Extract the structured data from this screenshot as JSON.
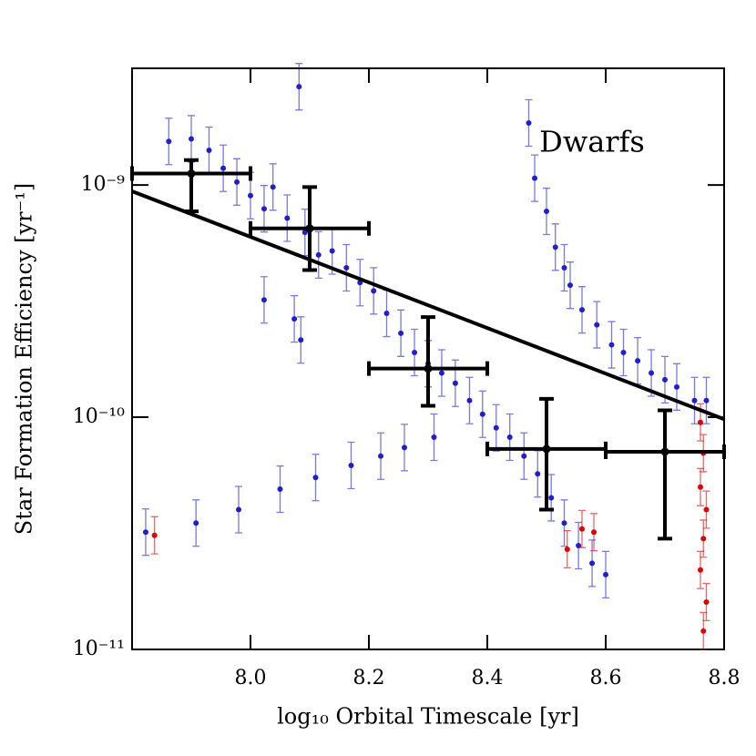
{
  "chart_data": {
    "type": "scatter",
    "y_scale": "log",
    "annotation": "Dwarfs",
    "x_label": "log₁₀ Orbital Timescale [yr]",
    "y_label": "Star Formation Efficiency [yr⁻¹]",
    "xlim": [
      7.8,
      8.8
    ],
    "ylim": [
      1e-11,
      3.18e-09
    ],
    "xticks": [
      {
        "value": 8,
        "label": "8.0"
      },
      8.2,
      8.4,
      8.6,
      8.8
    ],
    "yticks": [
      {
        "value": 1e-11,
        "label": "10⁻¹¹"
      },
      {
        "value": 1e-10,
        "label": "10⁻¹⁰"
      },
      {
        "value": 1e-09,
        "label": "10⁻⁹"
      }
    ],
    "series": [
      {
        "color": "#1f1fd0",
        "y_err_dex": 0.1,
        "x": [
          7.823,
          7.908,
          7.98,
          8.05,
          8.11,
          8.17,
          8.22,
          8.26,
          8.31,
          8.47,
          8.48,
          8.5,
          8.515,
          8.53,
          8.54,
          8.56,
          8.585,
          8.61,
          8.63,
          8.654,
          8.677,
          8.7,
          8.72,
          8.75,
          8.77,
          7.862,
          7.9,
          7.93,
          7.954,
          7.977,
          8.0,
          8.023,
          8.038,
          8.062,
          8.082,
          8.092,
          8.115,
          8.138,
          8.162,
          8.185,
          8.208,
          8.23,
          8.254,
          8.277,
          8.3,
          8.323,
          8.346,
          8.37,
          8.392,
          8.415,
          8.438,
          8.462,
          8.485,
          8.508,
          8.53,
          8.554,
          8.577,
          8.6,
          8.023,
          8.074,
          8.085
        ],
        "values": [
          3.2e-11,
          3.5e-11,
          4e-11,
          4.9e-11,
          5.5e-11,
          6.2e-11,
          6.8e-11,
          7.4e-11,
          8.2e-11,
          1.85e-09,
          1.07e-09,
          7.7e-10,
          5.4e-10,
          4.4e-10,
          3.7e-10,
          2.9e-10,
          2.5e-10,
          2.05e-10,
          1.9e-10,
          1.75e-10,
          1.55e-10,
          1.45e-10,
          1.35e-10,
          1.18e-10,
          1.18e-10,
          1.54e-09,
          1.58e-09,
          1.41e-09,
          1.18e-09,
          1.03e-09,
          9e-10,
          7.9e-10,
          9.8e-10,
          7.2e-10,
          2.65e-09,
          6.25e-10,
          5e-10,
          5.2e-10,
          4.4e-10,
          3.8e-10,
          3.5e-10,
          2.8e-10,
          2.3e-10,
          1.9e-10,
          1.7e-10,
          1.55e-10,
          1.4e-10,
          1.18e-10,
          1.03e-10,
          9e-11,
          8.2e-11,
          6.8e-11,
          5.7e-11,
          4.5e-11,
          3.5e-11,
          2.8e-11,
          2.35e-11,
          2.1e-11,
          3.2e-10,
          2.65e-10,
          2.15e-10
        ]
      },
      {
        "color": "#e00000",
        "y_err_dex": 0.08,
        "x": [
          7.838,
          8.535,
          8.56,
          8.58,
          8.76,
          8.765,
          8.76,
          8.77,
          8.765,
          8.76,
          8.77,
          8.765
        ],
        "values": [
          3.1e-11,
          2.7e-11,
          3.3e-11,
          3.2e-11,
          9.5e-11,
          7e-11,
          5e-11,
          4e-11,
          3e-11,
          2.2e-11,
          1.6e-11,
          1.2e-11
        ]
      }
    ],
    "binned": {
      "color": "#000000",
      "x": [
        7.9,
        8.1,
        8.3,
        8.5,
        8.7
      ],
      "x_low": [
        7.8,
        8.0,
        8.2,
        8.4,
        8.6
      ],
      "x_high": [
        8.0,
        8.2,
        8.4,
        8.6,
        8.8
      ],
      "values": [
        1.12e-09,
        6.5e-10,
        1.62e-10,
        7.3e-11,
        7.1e-11
      ],
      "y_low": [
        7.7e-10,
        4.3e-10,
        1.12e-10,
        4e-11,
        3e-11
      ],
      "y_high": [
        1.28e-09,
        9.8e-10,
        2.7e-10,
        1.2e-10,
        1.07e-10
      ]
    },
    "fit": {
      "color": "#000000",
      "x": [
        7.8,
        8.8
      ],
      "values": [
        9.4e-10,
        9.8e-11
      ]
    }
  }
}
